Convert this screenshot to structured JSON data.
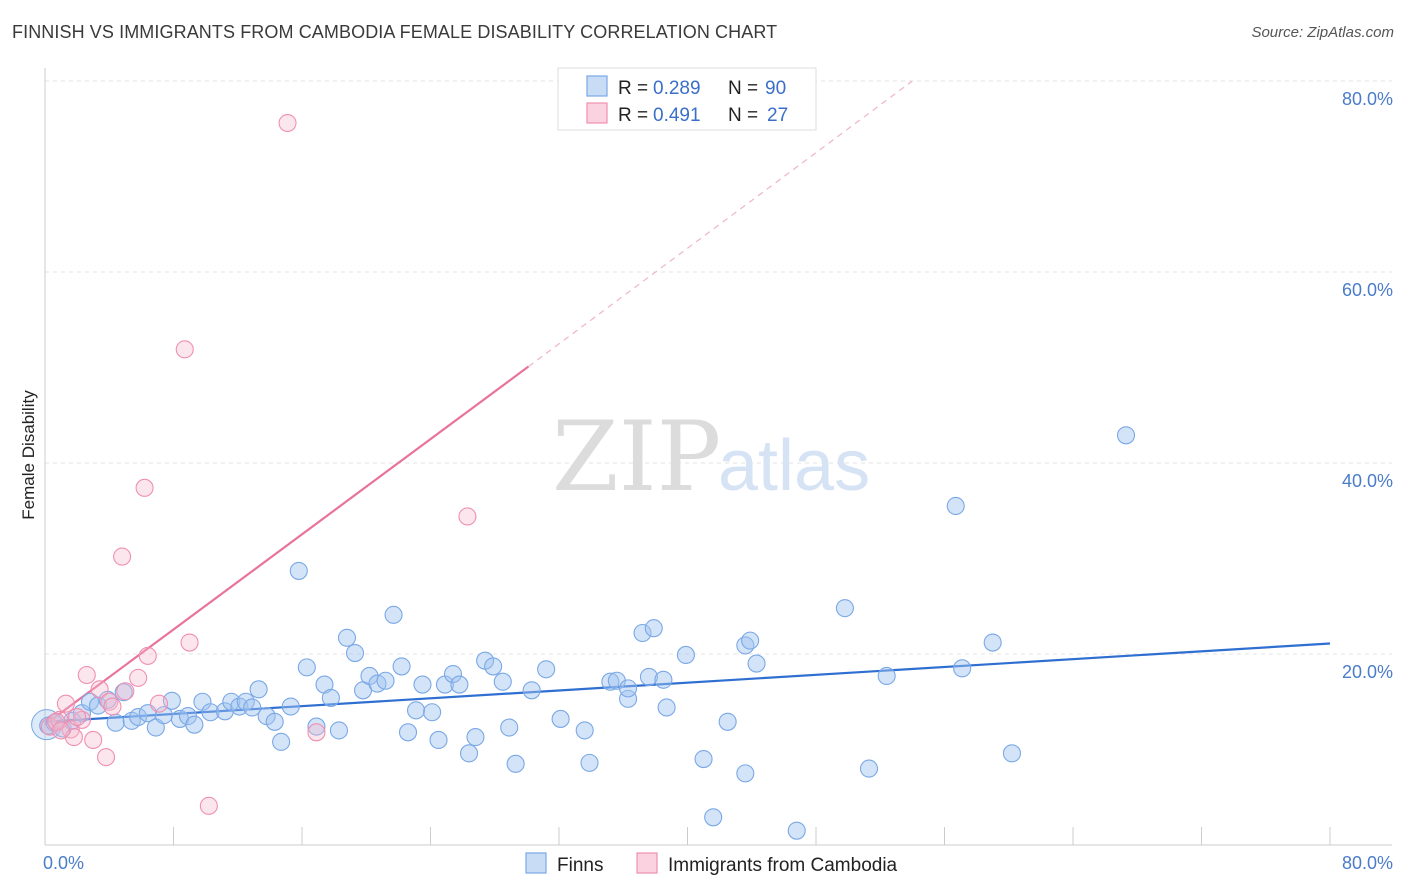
{
  "title": "FINNISH VS IMMIGRANTS FROM CAMBODIA FEMALE DISABILITY CORRELATION CHART",
  "source": "Source: ZipAtlas.com",
  "watermark": {
    "zip": "ZIP",
    "atlas": "atlas"
  },
  "legend_top": {
    "rows": [
      {
        "r_label": "R =",
        "r_value": "0.289",
        "n_label": "N =",
        "n_value": "90",
        "color": "#9fc3ef"
      },
      {
        "r_label": "R =",
        "r_value": "0.491",
        "n_label": "N =",
        "n_value": "27",
        "color": "#f7b6cb"
      }
    ]
  },
  "legend_bottom": [
    {
      "label": "Finns",
      "color": "#9fc3ef"
    },
    {
      "label": "Immigrants from Cambodia",
      "color": "#f7b6cb"
    }
  ],
  "chart_data": {
    "type": "scatter",
    "title": "FINNISH VS IMMIGRANTS FROM CAMBODIA FEMALE DISABILITY CORRELATION CHART",
    "xlabel": "",
    "ylabel": "Female Disability",
    "xlim": [
      0,
      80
    ],
    "ylim": [
      0,
      80
    ],
    "x_tick_labels": [
      {
        "value": 0,
        "label": "0.0%"
      },
      {
        "value": 80,
        "label": "80.0%"
      }
    ],
    "y_tick_labels": [
      {
        "value": 20,
        "label": "20.0%"
      },
      {
        "value": 40,
        "label": "40.0%"
      },
      {
        "value": 60,
        "label": "60.0%"
      },
      {
        "value": 80,
        "label": "80.0%"
      }
    ],
    "grid": true,
    "legend_placement": "top-center",
    "series": [
      {
        "name": "Finns",
        "color": "#9fc3ef",
        "stroke": "#7aa8e6",
        "trend_color": "#2f6fd1",
        "trend": {
          "x": [
            0,
            80
          ],
          "y": [
            12.9,
            21.1
          ],
          "dashed_extension": false
        },
        "points": [
          [
            0.2,
            12.5
          ],
          [
            0.6,
            12.8
          ],
          [
            1.1,
            12.2
          ],
          [
            1.7,
            13.0
          ],
          [
            2.3,
            13.8
          ],
          [
            2.8,
            15.0
          ],
          [
            3.3,
            14.6
          ],
          [
            3.9,
            15.2
          ],
          [
            4.4,
            12.8
          ],
          [
            4.9,
            16.0
          ],
          [
            5.4,
            13.0
          ],
          [
            5.8,
            13.4
          ],
          [
            6.4,
            13.8
          ],
          [
            6.9,
            12.3
          ],
          [
            7.4,
            13.6
          ],
          [
            7.9,
            15.1
          ],
          [
            8.4,
            13.2
          ],
          [
            8.9,
            13.5
          ],
          [
            9.3,
            12.6
          ],
          [
            9.8,
            15.0
          ],
          [
            10.3,
            13.9
          ],
          [
            11.2,
            14.0
          ],
          [
            11.6,
            15.0
          ],
          [
            12.1,
            14.5
          ],
          [
            12.5,
            15.0
          ],
          [
            12.9,
            14.4
          ],
          [
            13.3,
            16.3
          ],
          [
            13.8,
            13.5
          ],
          [
            14.3,
            12.9
          ],
          [
            14.7,
            10.8
          ],
          [
            15.3,
            14.5
          ],
          [
            15.8,
            28.7
          ],
          [
            16.3,
            18.6
          ],
          [
            16.9,
            12.4
          ],
          [
            17.4,
            16.8
          ],
          [
            17.8,
            15.4
          ],
          [
            18.3,
            12.0
          ],
          [
            18.8,
            21.7
          ],
          [
            19.3,
            20.1
          ],
          [
            19.8,
            16.2
          ],
          [
            20.2,
            17.7
          ],
          [
            20.7,
            16.9
          ],
          [
            21.2,
            17.2
          ],
          [
            21.7,
            24.1
          ],
          [
            22.2,
            18.7
          ],
          [
            22.6,
            11.8
          ],
          [
            23.1,
            14.1
          ],
          [
            23.5,
            16.8
          ],
          [
            24.1,
            13.9
          ],
          [
            24.5,
            11.0
          ],
          [
            24.9,
            16.8
          ],
          [
            25.4,
            17.9
          ],
          [
            25.8,
            16.8
          ],
          [
            26.4,
            9.6
          ],
          [
            26.8,
            11.3
          ],
          [
            27.4,
            19.3
          ],
          [
            27.9,
            18.7
          ],
          [
            28.5,
            17.1
          ],
          [
            28.9,
            12.3
          ],
          [
            29.3,
            8.5
          ],
          [
            30.3,
            16.2
          ],
          [
            31.2,
            18.4
          ],
          [
            32.1,
            13.2
          ],
          [
            33.6,
            12.0
          ],
          [
            33.9,
            8.6
          ],
          [
            35.2,
            17.1
          ],
          [
            35.6,
            17.2
          ],
          [
            36.3,
            15.3
          ],
          [
            36.3,
            16.4
          ],
          [
            37.2,
            22.2
          ],
          [
            37.6,
            17.6
          ],
          [
            37.9,
            22.7
          ],
          [
            38.5,
            17.3
          ],
          [
            38.7,
            14.4
          ],
          [
            39.9,
            19.9
          ],
          [
            41.0,
            9.0
          ],
          [
            41.6,
            2.9
          ],
          [
            42.5,
            12.9
          ],
          [
            43.6,
            7.5
          ],
          [
            43.6,
            20.9
          ],
          [
            43.9,
            21.4
          ],
          [
            44.3,
            19.0
          ],
          [
            46.8,
            1.5
          ],
          [
            49.8,
            24.8
          ],
          [
            51.3,
            8.0
          ],
          [
            52.4,
            17.7
          ],
          [
            56.7,
            35.5
          ],
          [
            57.1,
            18.5
          ],
          [
            59.0,
            21.2
          ],
          [
            60.2,
            9.6
          ],
          [
            67.3,
            42.9
          ]
        ]
      },
      {
        "name": "Immigrants from Cambodia",
        "color": "#f7b6cb",
        "stroke": "#f08fb0",
        "trend_color": "#e8739c",
        "trend": {
          "x": [
            0,
            30.1
          ],
          "y": [
            12.6,
            50.1
          ],
          "dashed_to": [
            54.0,
            80.0
          ]
        },
        "points": [
          [
            0.3,
            12.4
          ],
          [
            0.9,
            13.1
          ],
          [
            1.3,
            14.8
          ],
          [
            1.6,
            12.1
          ],
          [
            1.8,
            11.3
          ],
          [
            2.3,
            13.1
          ],
          [
            2.6,
            17.8
          ],
          [
            3.0,
            11.0
          ],
          [
            3.4,
            16.3
          ],
          [
            3.8,
            9.2
          ],
          [
            4.0,
            15.0
          ],
          [
            4.2,
            14.5
          ],
          [
            4.8,
            30.2
          ],
          [
            5.0,
            16.1
          ],
          [
            5.8,
            17.5
          ],
          [
            6.2,
            37.4
          ],
          [
            6.4,
            19.8
          ],
          [
            7.1,
            14.8
          ],
          [
            8.7,
            51.9
          ],
          [
            9.0,
            21.2
          ],
          [
            10.2,
            4.1
          ],
          [
            15.1,
            75.6
          ],
          [
            16.9,
            11.8
          ],
          [
            26.3,
            34.4
          ],
          [
            0.7,
            12.9
          ],
          [
            2.0,
            13.4
          ],
          [
            1.0,
            12.0
          ]
        ]
      }
    ]
  }
}
